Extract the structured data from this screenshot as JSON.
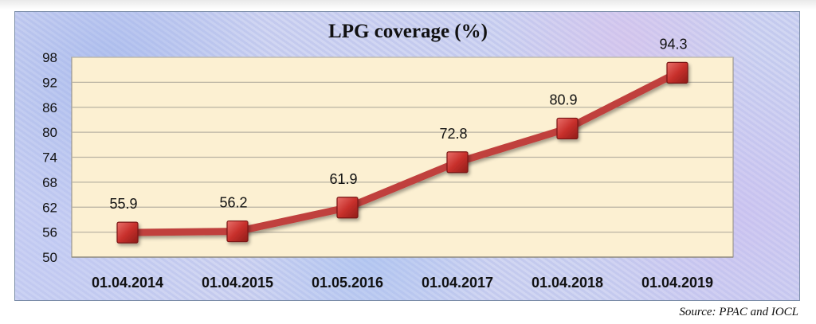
{
  "chart_data": {
    "type": "line",
    "title": "LPG coverage (%)",
    "categories": [
      "01.04.2014",
      "01.04.2015",
      "01.05.2016",
      "01.04.2017",
      "01.04.2018",
      "01.04.2019"
    ],
    "series": [
      {
        "values": [
          55.9,
          56.2,
          61.9,
          72.8,
          80.9,
          94.3
        ],
        "color": "#c0403c"
      }
    ],
    "data_labels": [
      "55.9",
      "56.2",
      "61.9",
      "72.8",
      "80.9",
      "94.3"
    ],
    "ylim": [
      50,
      98
    ],
    "yticks": [
      50,
      56,
      62,
      68,
      74,
      80,
      86,
      92,
      98
    ],
    "grid": true,
    "plot_background": "#fcf0d2",
    "gridline_color": "#b9b3a3",
    "marker": "square",
    "marker_color": "#c8302c"
  },
  "source": "Source: PPAC and IOCL"
}
